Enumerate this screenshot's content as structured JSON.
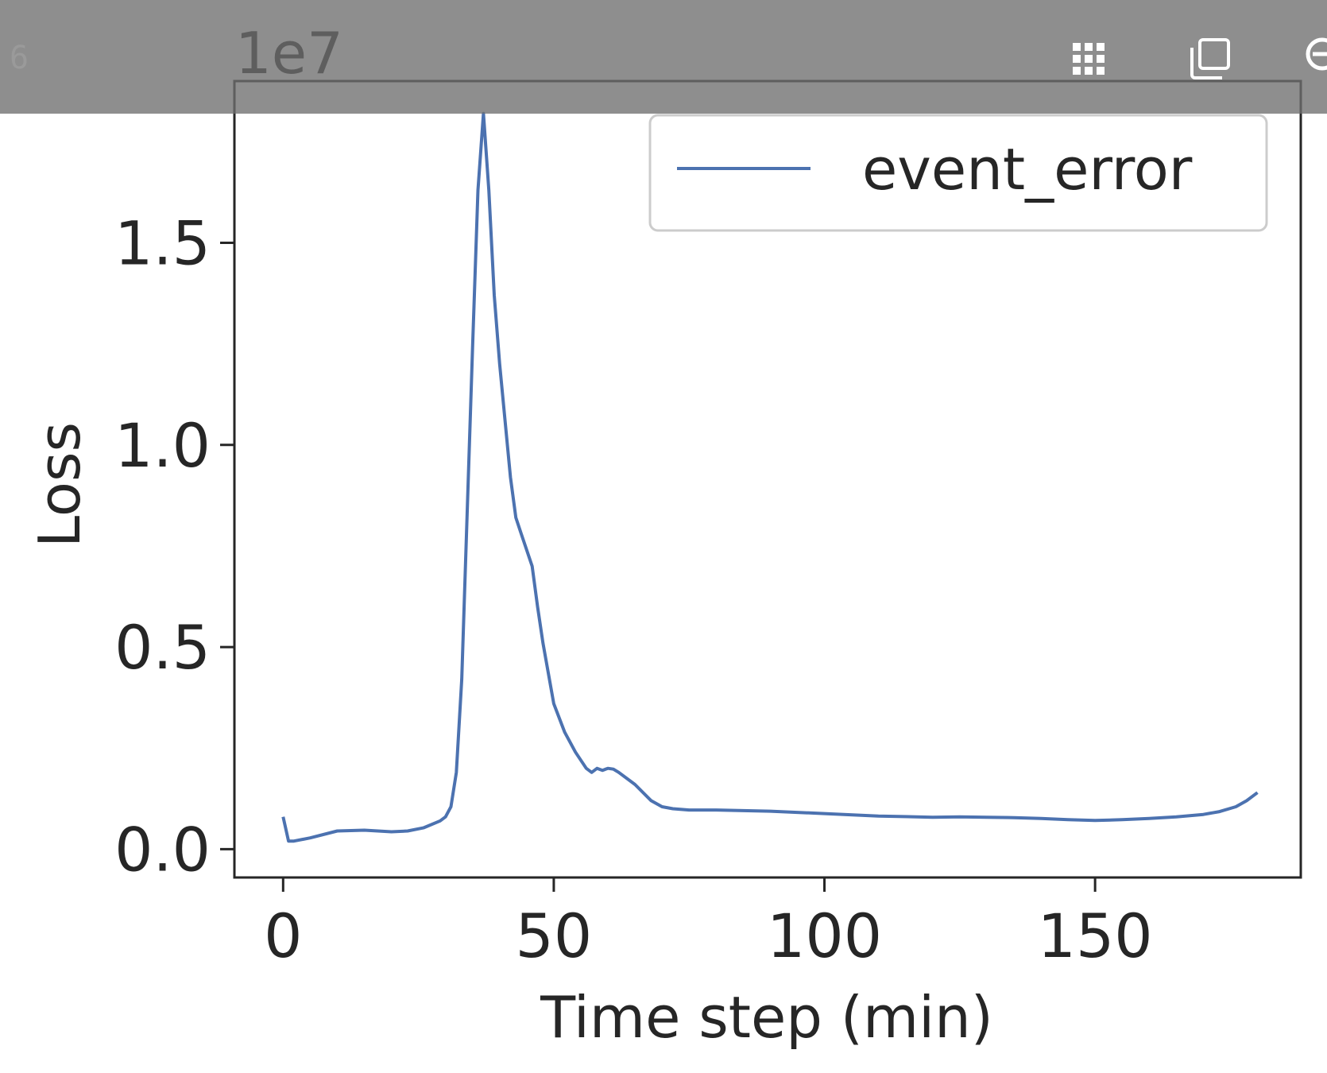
{
  "toolbar": {
    "cell_label": "6",
    "icons": [
      "grid-icon",
      "copy-icon",
      "zoom-icon"
    ]
  },
  "chart_data": {
    "type": "line",
    "title": "",
    "xlabel": "Time step (min)",
    "ylabel": "Loss",
    "y_scale_label": "1e7",
    "xlim": [
      -9,
      188
    ],
    "ylim": [
      -0.07,
      1.9
    ],
    "x_ticks": [
      0,
      50,
      100,
      150
    ],
    "x_tick_labels": [
      "0",
      "50",
      "100",
      "150"
    ],
    "y_ticks": [
      0.0,
      0.5,
      1.0,
      1.5
    ],
    "y_tick_labels": [
      "0.0",
      "0.5",
      "1.0",
      "1.5"
    ],
    "grid": false,
    "legend": "upper right",
    "colors": {
      "line": "#4c72b0",
      "axes": "#262626",
      "legend_border": "#cccccc"
    },
    "series": [
      {
        "name": "event_error",
        "x": [
          0,
          1,
          2,
          5,
          10,
          15,
          20,
          23,
          26,
          29,
          30,
          31,
          32,
          33,
          34,
          35,
          36,
          37,
          38,
          39,
          40,
          42,
          43,
          44,
          46,
          47,
          48,
          50,
          52,
          54,
          56,
          57,
          58,
          59,
          60,
          61,
          62,
          65,
          68,
          70,
          72,
          75,
          80,
          90,
          100,
          110,
          120,
          125,
          130,
          135,
          140,
          145,
          150,
          155,
          160,
          165,
          170,
          173,
          176,
          178,
          180
        ],
        "y": [
          0.08,
          0.02,
          0.02,
          0.028,
          0.045,
          0.047,
          0.043,
          0.045,
          0.053,
          0.07,
          0.08,
          0.105,
          0.19,
          0.42,
          0.83,
          1.24,
          1.63,
          1.82,
          1.63,
          1.37,
          1.2,
          0.92,
          0.82,
          0.78,
          0.7,
          0.6,
          0.51,
          0.36,
          0.29,
          0.24,
          0.2,
          0.19,
          0.2,
          0.195,
          0.2,
          0.198,
          0.19,
          0.16,
          0.12,
          0.105,
          0.1,
          0.097,
          0.097,
          0.094,
          0.088,
          0.082,
          0.079,
          0.08,
          0.079,
          0.078,
          0.076,
          0.073,
          0.071,
          0.073,
          0.076,
          0.08,
          0.086,
          0.093,
          0.105,
          0.12,
          0.14
        ]
      }
    ]
  }
}
